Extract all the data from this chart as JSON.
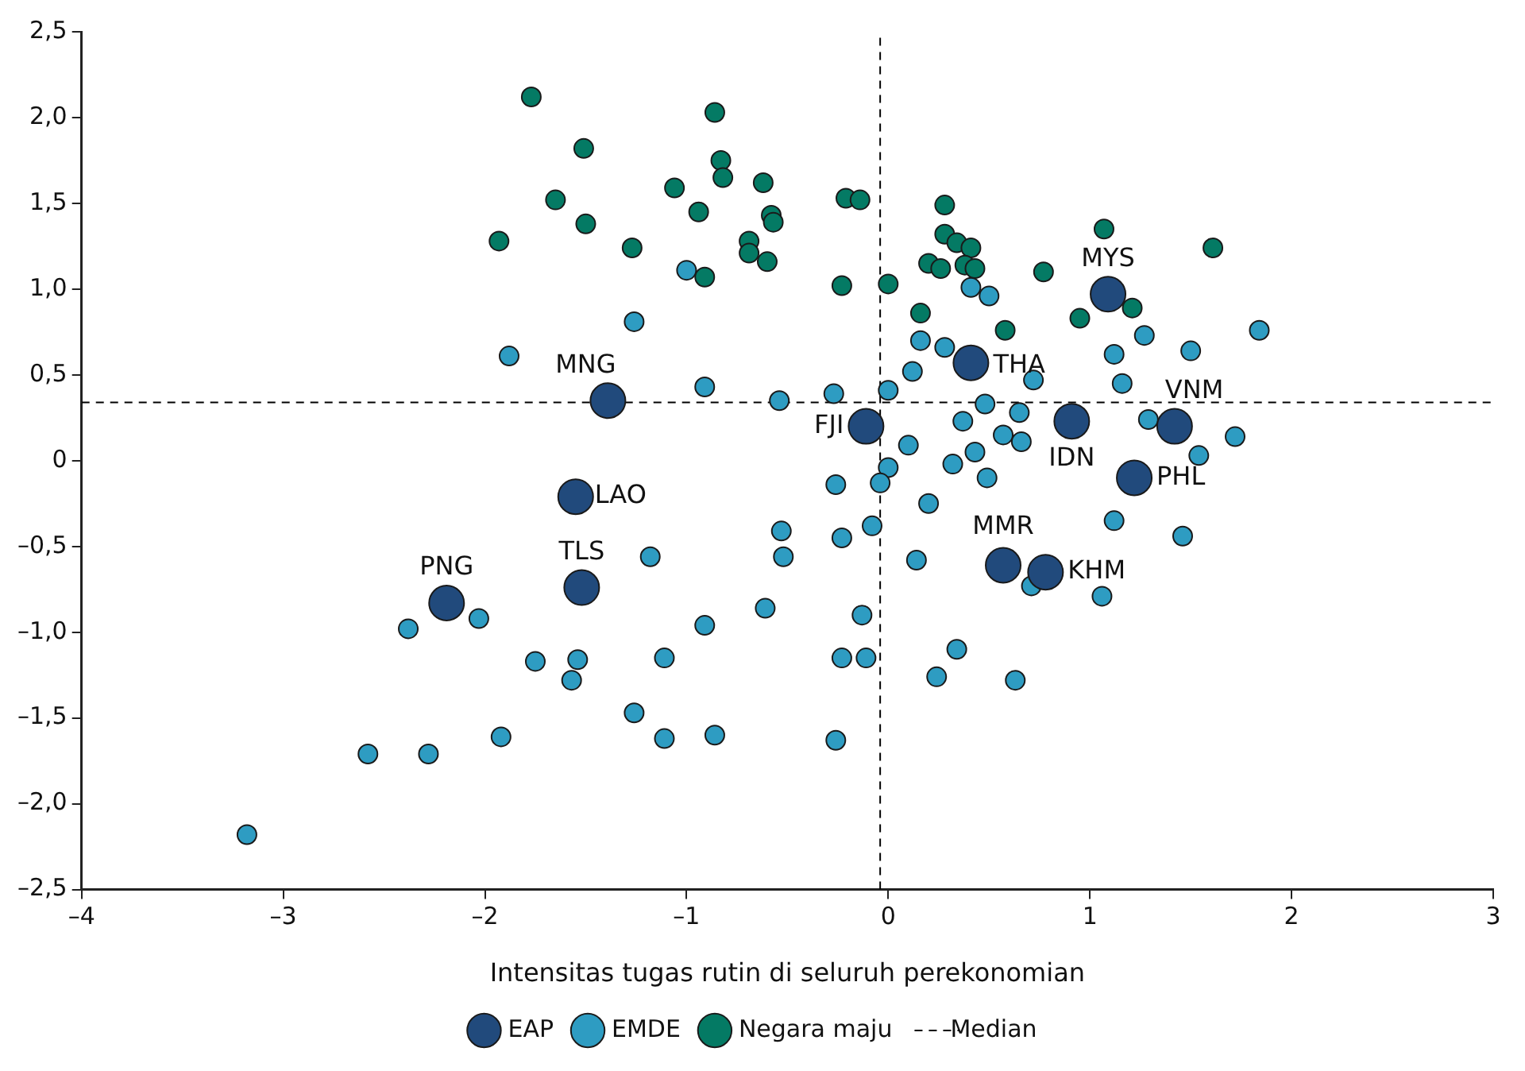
{
  "chart_data": {
    "type": "scatter",
    "xlabel": "Intensitas tugas rutin di seluruh perekonomian",
    "marker": "circle",
    "legend": "bottom",
    "grid": false,
    "xlim": [
      -4,
      3
    ],
    "xticks": [
      {
        "value": -4,
        "label": "–4"
      },
      {
        "value": -3,
        "label": "–3"
      },
      {
        "value": -2,
        "label": "–2"
      },
      {
        "value": -1,
        "label": "–1"
      },
      0,
      1,
      2,
      3
    ],
    "ylim": [
      -2.5,
      2.5
    ],
    "yticks": [
      {
        "value": -2.5,
        "label": "–2,5"
      },
      {
        "value": -2,
        "label": "–2,0"
      },
      {
        "value": -1.5,
        "label": "–1,5"
      },
      {
        "value": -1,
        "label": "–1,0"
      },
      {
        "value": -0.5,
        "label": "–0,5"
      },
      0,
      {
        "value": 0.5,
        "label": "0,5"
      },
      {
        "value": 1,
        "label": "1,0"
      },
      {
        "value": 1.5,
        "label": "1,5"
      },
      {
        "value": 2,
        "label": "2,0"
      },
      {
        "value": 2.5,
        "label": "2,5"
      }
    ],
    "series": [
      {
        "name": "EAP",
        "color": "#214a7c",
        "x": [
          1.09,
          0.41,
          -1.39,
          -0.11,
          0.91,
          1.42,
          1.22,
          -1.55,
          0.57,
          0.78,
          -1.52,
          -2.19
        ],
        "values": [
          0.97,
          0.57,
          0.35,
          0.2,
          0.23,
          0.2,
          -0.1,
          -0.21,
          -0.61,
          -0.65,
          -0.74,
          -0.83
        ]
      },
      {
        "name": "EMDE",
        "color": "#2e9cc2",
        "x": [
          -1.88,
          -1.26,
          -1.0,
          -0.91,
          -0.54,
          -0.27,
          0.0,
          0.41,
          0.5,
          0.16,
          0.28,
          0.12,
          0.72,
          1.16,
          1.27,
          1.12,
          1.5,
          1.84,
          1.29,
          1.72,
          1.54,
          1.12,
          1.46,
          1.06,
          0.48,
          0.65,
          0.37,
          0.1,
          0.57,
          0.66,
          0.43,
          0.0,
          -0.04,
          -0.26,
          0.32,
          0.49,
          0.2,
          -0.08,
          -0.23,
          -0.53,
          -0.52,
          -1.18,
          0.14,
          0.71,
          -0.13,
          -0.61,
          -0.91,
          -1.11,
          -0.23,
          -0.11,
          0.34,
          0.24,
          0.63,
          -1.26,
          -1.11,
          -0.86,
          -0.26,
          -2.38,
          -2.03,
          -1.75,
          -1.54,
          -1.57,
          -1.92,
          -2.58,
          -2.28,
          -3.18
        ],
        "values": [
          0.61,
          0.81,
          1.11,
          0.43,
          0.35,
          0.39,
          0.41,
          1.01,
          0.96,
          0.7,
          0.66,
          0.52,
          0.47,
          0.45,
          0.73,
          0.62,
          0.64,
          0.76,
          0.24,
          0.14,
          0.03,
          -0.35,
          -0.44,
          -0.79,
          0.33,
          0.28,
          0.23,
          0.09,
          0.15,
          0.11,
          0.05,
          -0.04,
          -0.13,
          -0.14,
          -0.02,
          -0.1,
          -0.25,
          -0.38,
          -0.45,
          -0.41,
          -0.56,
          -0.56,
          -0.58,
          -0.73,
          -0.9,
          -0.86,
          -0.96,
          -1.15,
          -1.15,
          -1.15,
          -1.1,
          -1.26,
          -1.28,
          -1.47,
          -1.62,
          -1.6,
          -1.63,
          -0.98,
          -0.92,
          -1.17,
          -1.16,
          -1.28,
          -1.61,
          -1.71,
          -1.71,
          -2.18
        ]
      },
      {
        "name": "Negara maju",
        "color": "#047a64",
        "x": [
          -1.77,
          -0.86,
          -1.51,
          -0.83,
          -0.82,
          -1.65,
          -1.06,
          -0.62,
          -1.5,
          -0.94,
          -0.58,
          -0.57,
          -0.69,
          -0.69,
          -0.6,
          -0.91,
          -1.93,
          -1.27,
          -0.21,
          -0.14,
          -0.23,
          0.0,
          0.28,
          0.28,
          0.34,
          0.41,
          0.2,
          0.26,
          0.38,
          0.43,
          0.16,
          0.58,
          0.77,
          1.07,
          0.95,
          1.21,
          1.61
        ],
        "values": [
          2.12,
          2.03,
          1.82,
          1.75,
          1.65,
          1.52,
          1.59,
          1.62,
          1.38,
          1.45,
          1.43,
          1.39,
          1.28,
          1.21,
          1.16,
          1.07,
          1.28,
          1.24,
          1.53,
          1.52,
          1.02,
          1.03,
          1.49,
          1.32,
          1.27,
          1.24,
          1.15,
          1.12,
          1.14,
          1.12,
          0.86,
          0.76,
          1.1,
          1.35,
          0.83,
          0.89,
          1.24
        ]
      }
    ],
    "ref_lines": [
      {
        "axis": "x",
        "value": -0.04,
        "label": "Median",
        "line_style": "dashed",
        "color": "#000000"
      },
      {
        "axis": "y",
        "value": 0.34,
        "line_style": "dashed",
        "color": "#000000"
      }
    ],
    "annotations": [
      {
        "text": "MYS",
        "x": 1.09,
        "y": 0.97
      },
      {
        "text": "THA",
        "x": 0.41,
        "y": 0.57
      },
      {
        "text": "MNG",
        "x": -1.39,
        "y": 0.35
      },
      {
        "text": "FJI",
        "x": -0.11,
        "y": 0.2
      },
      {
        "text": "IDN",
        "x": 0.91,
        "y": 0.23
      },
      {
        "text": "VNM",
        "x": 1.42,
        "y": 0.2
      },
      {
        "text": "PHL",
        "x": 1.22,
        "y": -0.1
      },
      {
        "text": "LAO",
        "x": -1.55,
        "y": -0.21
      },
      {
        "text": "MMR",
        "x": 0.57,
        "y": -0.61
      },
      {
        "text": "KHM",
        "x": 0.78,
        "y": -0.65
      },
      {
        "text": "TLS",
        "x": -1.52,
        "y": -0.74
      },
      {
        "text": "PNG",
        "x": -2.19,
        "y": -0.83
      }
    ]
  }
}
